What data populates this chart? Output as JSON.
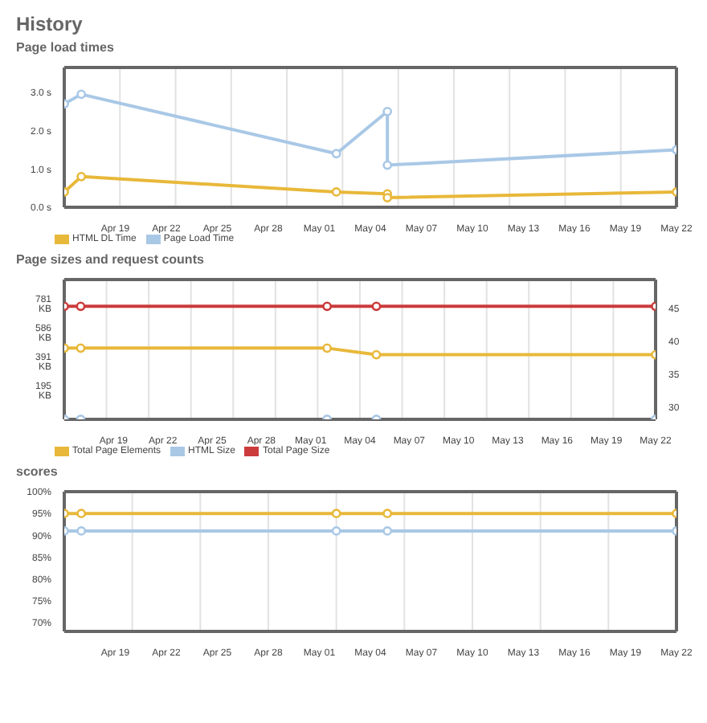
{
  "chart_data": [
    {
      "type": "line",
      "title": "History",
      "subtitle": "Page load times",
      "x": [
        "--04-16",
        "--04-17",
        "--05-02",
        "--05-05",
        "--05-05",
        "--05-22"
      ],
      "series": [
        {
          "name": "HTML DL Time",
          "color": "#e8b83a",
          "values": [
            0.4,
            0.8,
            0.4,
            0.35,
            0.25,
            0.4
          ]
        },
        {
          "name": "Page Load Time",
          "color": "#a9c8e6",
          "values": [
            2.7,
            2.95,
            1.4,
            2.5,
            1.1,
            1.5
          ]
        }
      ],
      "xlim": [
        "--04-16",
        "--05-22"
      ],
      "xticks": [
        {
          "value": "--04-19",
          "label": "Apr 19"
        },
        {
          "value": "--04-22",
          "label": "Apr 22"
        },
        {
          "value": "--04-25",
          "label": "Apr 25"
        },
        {
          "value": "--04-28",
          "label": "Apr 28"
        },
        {
          "value": "--05-01",
          "label": "May 01"
        },
        {
          "value": "--05-04",
          "label": "May 04"
        },
        {
          "value": "--05-07",
          "label": "May 07"
        },
        {
          "value": "--05-10",
          "label": "May 10"
        },
        {
          "value": "--05-13",
          "label": "May 13"
        },
        {
          "value": "--05-16",
          "label": "May 16"
        },
        {
          "value": "--05-19",
          "label": "May 19"
        },
        {
          "value": "--05-22",
          "label": "May 22"
        }
      ],
      "ylim": [
        0,
        3.65
      ],
      "yticks": [
        {
          "value": 0,
          "label": "0.0 s"
        },
        {
          "value": 1,
          "label": "1.0 s"
        },
        {
          "value": 2,
          "label": "2.0 s"
        },
        {
          "value": 3,
          "label": "3.0 s"
        }
      ],
      "grid": true,
      "legend": "bottom left",
      "marker": "circle"
    },
    {
      "type": "line",
      "title": "Page sizes and request counts",
      "x": [
        "--04-16",
        "--04-17",
        "--05-02",
        "--05-05",
        "--05-22"
      ],
      "series": [
        {
          "name": "Total Page Elements",
          "color": "#e8b83a",
          "axis": "y2",
          "values": [
            39,
            39,
            39,
            38,
            38
          ]
        },
        {
          "name": "HTML Size",
          "color": "#a9c8e6",
          "values": [
            0,
            0,
            0,
            0,
            0
          ]
        },
        {
          "name": "Total Page Size",
          "color": "#cc3b3b",
          "values": [
            760,
            760,
            760,
            760,
            760
          ]
        }
      ],
      "xlim": [
        "--04-16",
        "--05-22"
      ],
      "xticks": [
        {
          "value": "--04-19",
          "label": "Apr 19"
        },
        {
          "value": "--04-22",
          "label": "Apr 22"
        },
        {
          "value": "--04-25",
          "label": "Apr 25"
        },
        {
          "value": "--04-28",
          "label": "Apr 28"
        },
        {
          "value": "--05-01",
          "label": "May 01"
        },
        {
          "value": "--05-04",
          "label": "May 04"
        },
        {
          "value": "--05-07",
          "label": "May 07"
        },
        {
          "value": "--05-10",
          "label": "May 10"
        },
        {
          "value": "--05-13",
          "label": "May 13"
        },
        {
          "value": "--05-16",
          "label": "May 16"
        },
        {
          "value": "--05-19",
          "label": "May 19"
        },
        {
          "value": "--05-22",
          "label": "May 22"
        }
      ],
      "ylim": [
        0,
        940
      ],
      "yticks": [
        {
          "value": 195,
          "label": "195 KB"
        },
        {
          "value": 391,
          "label": "391 KB"
        },
        {
          "value": 586,
          "label": "586 KB"
        },
        {
          "value": 781,
          "label": "781 KB"
        }
      ],
      "y2lim": [
        28.2,
        49.4
      ],
      "y2ticks": [
        30,
        35,
        40,
        45
      ],
      "grid": true,
      "legend": "bottom left",
      "marker": "circle"
    },
    {
      "type": "line",
      "title": "scores",
      "x": [
        "--04-16",
        "--04-17",
        "--05-02",
        "--05-05",
        "--05-22"
      ],
      "series": [
        {
          "color": "#e8b83a",
          "values": [
            95,
            95,
            95,
            95,
            95
          ]
        },
        {
          "color": "#a9c8e6",
          "values": [
            91,
            91,
            91,
            91,
            91
          ]
        }
      ],
      "xlim": [
        "--04-16",
        "--05-22"
      ],
      "xticks": [
        {
          "value": "--04-19",
          "label": "Apr 19"
        },
        {
          "value": "--04-22",
          "label": "Apr 22"
        },
        {
          "value": "--04-25",
          "label": "Apr 25"
        },
        {
          "value": "--04-28",
          "label": "Apr 28"
        },
        {
          "value": "--05-01",
          "label": "May 01"
        },
        {
          "value": "--05-04",
          "label": "May 04"
        },
        {
          "value": "--05-07",
          "label": "May 07"
        },
        {
          "value": "--05-10",
          "label": "May 10"
        },
        {
          "value": "--05-13",
          "label": "May 13"
        },
        {
          "value": "--05-16",
          "label": "May 16"
        },
        {
          "value": "--05-19",
          "label": "May 19"
        },
        {
          "value": "--05-22",
          "label": "May 22"
        }
      ],
      "ylim": [
        68,
        100
      ],
      "yticks": [
        {
          "value": 70,
          "label": "70%"
        },
        {
          "value": 75,
          "label": "75%"
        },
        {
          "value": 80,
          "label": "80%"
        },
        {
          "value": 85,
          "label": "85%"
        },
        {
          "value": 90,
          "label": "90%"
        },
        {
          "value": 95,
          "label": "95%"
        },
        {
          "value": 100,
          "label": "100%"
        }
      ],
      "grid": true,
      "marker": "circle"
    }
  ]
}
